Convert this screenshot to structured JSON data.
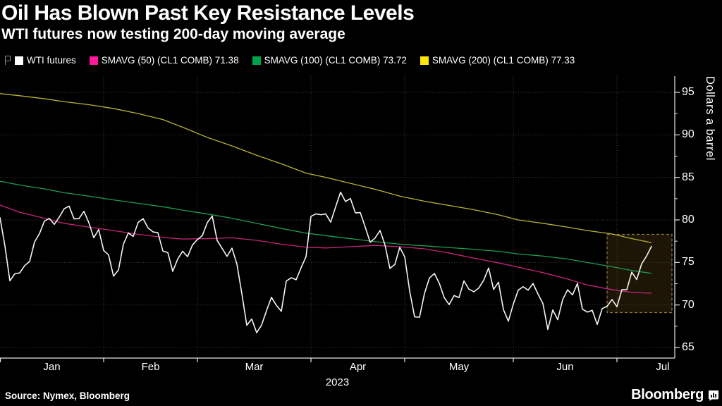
{
  "header": {
    "title": "Oil Has Blown Past Key Resistance Levels",
    "subtitle": "WTI futures now testing 200-day moving average"
  },
  "legend": {
    "tracker_icon": "flag-tracker-icon",
    "items": [
      {
        "label": "WTI futures",
        "value": "",
        "color": "#ffffff"
      },
      {
        "label": "SMAVG (50) (CL1 COMB)",
        "value": "71.38",
        "color": "#ff17a0"
      },
      {
        "label": "SMAVG (100) (CL1 COMB)",
        "value": "73.72",
        "color": "#00a34a"
      },
      {
        "label": "SMAVG (200) (CL1 COMB)",
        "value": "77.33",
        "color": "#ffe60a"
      }
    ]
  },
  "chart_data": {
    "type": "line",
    "title": "Oil Has Blown Past Key Resistance Levels",
    "subtitle": "WTI futures now testing 200-day moving average",
    "ylabel": "Dollars a barrel",
    "year_label": "2023",
    "ylim": [
      64.5,
      96.9
    ],
    "y_ticks": [
      65,
      70,
      75,
      80,
      85,
      90,
      95
    ],
    "x_month_labels": [
      "Jan",
      "Feb",
      "Mar",
      "Apr",
      "May",
      "Jun",
      "Jul"
    ],
    "month_boundaries": [
      "2023-02-01",
      "2023-03-01",
      "2023-04-03",
      "2023-05-01",
      "2023-06-01",
      "2023-07-03"
    ],
    "grid": true,
    "legend_position": "top-left",
    "highlight_box": {
      "start_date": "2023-06-29",
      "top_value": 78.3,
      "bottom_value": 69.1,
      "fill": "rgba(160,118,36,0.18)",
      "border_color": "#8f7c49"
    },
    "series": [
      {
        "name": "WTI futures",
        "color": "#f4f4f4",
        "width": 1.6,
        "dates": [
          "2022-12-30",
          "2023-01-03",
          "2023-01-04",
          "2023-01-05",
          "2023-01-06",
          "2023-01-09",
          "2023-01-10",
          "2023-01-11",
          "2023-01-12",
          "2023-01-13",
          "2023-01-17",
          "2023-01-18",
          "2023-01-19",
          "2023-01-20",
          "2023-01-23",
          "2023-01-24",
          "2023-01-25",
          "2023-01-26",
          "2023-01-27",
          "2023-01-30",
          "2023-01-31",
          "2023-02-01",
          "2023-02-02",
          "2023-02-03",
          "2023-02-06",
          "2023-02-07",
          "2023-02-08",
          "2023-02-09",
          "2023-02-10",
          "2023-02-13",
          "2023-02-14",
          "2023-02-15",
          "2023-02-16",
          "2023-02-17",
          "2023-02-21",
          "2023-02-22",
          "2023-02-23",
          "2023-02-24",
          "2023-02-27",
          "2023-02-28",
          "2023-03-01",
          "2023-03-02",
          "2023-03-03",
          "2023-03-06",
          "2023-03-07",
          "2023-03-08",
          "2023-03-09",
          "2023-03-10",
          "2023-03-13",
          "2023-03-14",
          "2023-03-15",
          "2023-03-16",
          "2023-03-17",
          "2023-03-20",
          "2023-03-21",
          "2023-03-22",
          "2023-03-23",
          "2023-03-24",
          "2023-03-27",
          "2023-03-28",
          "2023-03-29",
          "2023-03-30",
          "2023-03-31",
          "2023-04-03",
          "2023-04-04",
          "2023-04-05",
          "2023-04-06",
          "2023-04-10",
          "2023-04-11",
          "2023-04-12",
          "2023-04-13",
          "2023-04-14",
          "2023-04-17",
          "2023-04-18",
          "2023-04-19",
          "2023-04-20",
          "2023-04-21",
          "2023-04-24",
          "2023-04-25",
          "2023-04-26",
          "2023-04-27",
          "2023-04-28",
          "2023-05-01",
          "2023-05-02",
          "2023-05-03",
          "2023-05-04",
          "2023-05-05",
          "2023-05-08",
          "2023-05-09",
          "2023-05-10",
          "2023-05-11",
          "2023-05-12",
          "2023-05-15",
          "2023-05-16",
          "2023-05-17",
          "2023-05-18",
          "2023-05-19",
          "2023-05-22",
          "2023-05-23",
          "2023-05-24",
          "2023-05-25",
          "2023-05-26",
          "2023-05-30",
          "2023-05-31",
          "2023-06-01",
          "2023-06-02",
          "2023-06-05",
          "2023-06-06",
          "2023-06-07",
          "2023-06-08",
          "2023-06-09",
          "2023-06-12",
          "2023-06-13",
          "2023-06-14",
          "2023-06-15",
          "2023-06-16",
          "2023-06-20",
          "2023-06-21",
          "2023-06-22",
          "2023-06-23",
          "2023-06-26",
          "2023-06-27",
          "2023-06-28",
          "2023-06-29",
          "2023-06-30",
          "2023-07-03",
          "2023-07-05",
          "2023-07-06",
          "2023-07-07",
          "2023-07-10",
          "2023-07-11",
          "2023-07-12",
          "2023-07-13"
        ],
        "values": [
          80.26,
          76.93,
          72.84,
          73.67,
          73.77,
          74.63,
          75.12,
          77.41,
          78.39,
          79.86,
          80.18,
          79.48,
          80.33,
          81.31,
          81.62,
          80.13,
          80.15,
          81.01,
          79.68,
          77.9,
          78.87,
          76.41,
          75.88,
          73.39,
          74.11,
          77.14,
          78.47,
          78.06,
          79.72,
          80.14,
          79.06,
          78.59,
          78.49,
          76.34,
          76.16,
          73.95,
          75.39,
          76.32,
          75.68,
          77.05,
          77.69,
          78.16,
          79.68,
          80.46,
          77.58,
          76.66,
          75.72,
          76.68,
          74.8,
          71.33,
          67.61,
          68.35,
          66.74,
          67.64,
          69.33,
          70.9,
          69.96,
          69.26,
          72.81,
          73.2,
          72.97,
          74.37,
          75.67,
          80.42,
          80.71,
          80.61,
          80.7,
          79.74,
          81.53,
          83.26,
          82.16,
          82.52,
          80.83,
          80.86,
          79.16,
          77.37,
          77.87,
          78.76,
          77.07,
          74.3,
          74.76,
          76.78,
          75.66,
          71.66,
          68.6,
          68.56,
          71.34,
          73.16,
          73.71,
          72.56,
          70.87,
          70.04,
          71.11,
          70.86,
          72.83,
          71.86,
          71.55,
          71.99,
          72.91,
          74.34,
          71.83,
          72.67,
          69.46,
          68.09,
          70.1,
          71.74,
          72.15,
          71.74,
          72.53,
          71.29,
          70.17,
          67.12,
          69.42,
          68.27,
          70.62,
          71.78,
          71.19,
          72.53,
          69.51,
          69.16,
          69.37,
          67.7,
          69.56,
          69.86,
          70.64,
          69.79,
          71.79,
          71.8,
          73.86,
          72.99,
          74.83,
          75.75,
          76.89
        ]
      },
      {
        "name": "SMAVG (50) (CL1 COMB)",
        "last_value": 71.38,
        "color": "#c9257b",
        "width": 1.3,
        "points": [
          [
            "2022-12-30",
            81.75
          ],
          [
            "2023-01-06",
            80.9
          ],
          [
            "2023-01-13",
            80.2
          ],
          [
            "2023-01-20",
            79.6
          ],
          [
            "2023-01-27",
            79.15
          ],
          [
            "2023-02-03",
            78.75
          ],
          [
            "2023-02-10",
            78.3
          ],
          [
            "2023-02-17",
            77.95
          ],
          [
            "2023-02-24",
            77.75
          ],
          [
            "2023-03-03",
            77.8
          ],
          [
            "2023-03-10",
            77.9
          ],
          [
            "2023-03-17",
            77.6
          ],
          [
            "2023-03-24",
            77.15
          ],
          [
            "2023-03-31",
            76.8
          ],
          [
            "2023-04-06",
            76.7
          ],
          [
            "2023-04-14",
            76.85
          ],
          [
            "2023-04-21",
            77.0
          ],
          [
            "2023-04-28",
            76.85
          ],
          [
            "2023-05-05",
            76.6
          ],
          [
            "2023-05-12",
            76.1
          ],
          [
            "2023-05-19",
            75.5
          ],
          [
            "2023-05-26",
            74.95
          ],
          [
            "2023-06-02",
            74.45
          ],
          [
            "2023-06-09",
            73.8
          ],
          [
            "2023-06-16",
            73.05
          ],
          [
            "2023-06-23",
            72.35
          ],
          [
            "2023-06-30",
            71.8
          ],
          [
            "2023-07-07",
            71.48
          ],
          [
            "2023-07-13",
            71.38
          ]
        ]
      },
      {
        "name": "SMAVG (100) (CL1 COMB)",
        "last_value": 73.72,
        "color": "#1d9e4f",
        "width": 1.3,
        "points": [
          [
            "2022-12-30",
            84.55
          ],
          [
            "2023-01-06",
            84.1
          ],
          [
            "2023-01-13",
            83.65
          ],
          [
            "2023-01-20",
            83.2
          ],
          [
            "2023-01-27",
            82.8
          ],
          [
            "2023-02-03",
            82.35
          ],
          [
            "2023-02-10",
            81.95
          ],
          [
            "2023-02-17",
            81.55
          ],
          [
            "2023-02-24",
            81.15
          ],
          [
            "2023-03-03",
            80.7
          ],
          [
            "2023-03-10",
            80.2
          ],
          [
            "2023-03-17",
            79.6
          ],
          [
            "2023-03-24",
            79.0
          ],
          [
            "2023-03-31",
            78.45
          ],
          [
            "2023-04-06",
            78.15
          ],
          [
            "2023-04-14",
            77.8
          ],
          [
            "2023-04-21",
            77.45
          ],
          [
            "2023-04-28",
            77.15
          ],
          [
            "2023-05-05",
            76.95
          ],
          [
            "2023-05-12",
            76.75
          ],
          [
            "2023-05-19",
            76.55
          ],
          [
            "2023-05-26",
            76.3
          ],
          [
            "2023-06-02",
            76.0
          ],
          [
            "2023-06-09",
            75.75
          ],
          [
            "2023-06-16",
            75.4
          ],
          [
            "2023-06-23",
            75.0
          ],
          [
            "2023-06-30",
            74.5
          ],
          [
            "2023-07-07",
            74.05
          ],
          [
            "2023-07-13",
            73.72
          ]
        ]
      },
      {
        "name": "SMAVG (200) (CL1 COMB)",
        "last_value": 77.33,
        "color": "#b9b335",
        "width": 1.3,
        "points": [
          [
            "2022-12-30",
            94.85
          ],
          [
            "2023-01-06",
            94.6
          ],
          [
            "2023-01-13",
            94.25
          ],
          [
            "2023-01-20",
            93.9
          ],
          [
            "2023-01-27",
            93.55
          ],
          [
            "2023-02-03",
            93.1
          ],
          [
            "2023-02-10",
            92.5
          ],
          [
            "2023-02-17",
            91.8
          ],
          [
            "2023-02-24",
            90.9
          ],
          [
            "2023-03-03",
            89.7
          ],
          [
            "2023-03-10",
            88.7
          ],
          [
            "2023-03-17",
            87.6
          ],
          [
            "2023-03-24",
            86.6
          ],
          [
            "2023-03-31",
            85.5
          ],
          [
            "2023-04-06",
            85.0
          ],
          [
            "2023-04-14",
            84.3
          ],
          [
            "2023-04-21",
            83.6
          ],
          [
            "2023-04-28",
            82.8
          ],
          [
            "2023-05-05",
            82.2
          ],
          [
            "2023-05-12",
            81.7
          ],
          [
            "2023-05-19",
            81.2
          ],
          [
            "2023-05-26",
            80.6
          ],
          [
            "2023-06-02",
            80.0
          ],
          [
            "2023-06-09",
            79.6
          ],
          [
            "2023-06-16",
            79.15
          ],
          [
            "2023-06-23",
            78.75
          ],
          [
            "2023-06-30",
            78.35
          ],
          [
            "2023-07-07",
            77.8
          ],
          [
            "2023-07-13",
            77.33
          ]
        ]
      }
    ]
  },
  "footer": {
    "source": "Source: Nymex, Bloomberg",
    "brand": "Bloomberg",
    "brand_icon": "terminal-chart-icon"
  }
}
